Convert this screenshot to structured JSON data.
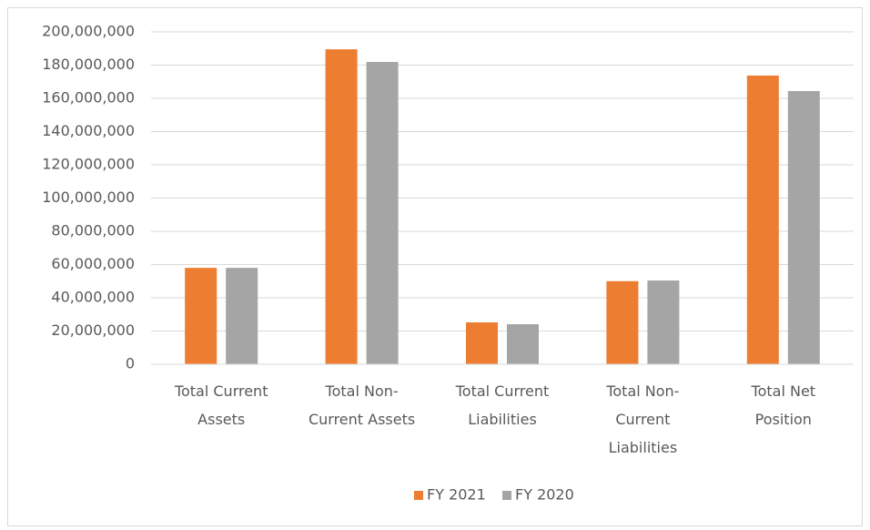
{
  "chart_data": {
    "type": "bar",
    "categories": [
      "Total Current Assets",
      "Total Non-Current Assets",
      "Total Current Liabilities",
      "Total Non-Current Liabilities",
      "Total Net Position"
    ],
    "series": [
      {
        "name": "FY 2021",
        "color": "#ed7d31",
        "values": [
          58000000,
          189500000,
          25200000,
          50000000,
          173700000
        ]
      },
      {
        "name": "FY 2020",
        "color": "#a5a5a5",
        "values": [
          58000000,
          181900000,
          24100000,
          50400000,
          164400000
        ]
      }
    ],
    "ylim": [
      0,
      200000000
    ],
    "yticks": [
      0,
      {
        "value": 20000000,
        "label": "20,000,000"
      },
      {
        "value": 40000000,
        "label": "40,000,000"
      },
      {
        "value": 60000000,
        "label": "60,000,000"
      },
      {
        "value": 80000000,
        "label": "80,000,000"
      },
      {
        "value": 100000000,
        "label": "100,000,000"
      },
      {
        "value": 120000000,
        "label": "120,000,000"
      },
      {
        "value": 140000000,
        "label": "140,000,000"
      },
      {
        "value": 160000000,
        "label": "160,000,000"
      },
      {
        "value": 180000000,
        "label": "180,000,000"
      },
      {
        "value": 200000000,
        "label": "200,000,000"
      }
    ],
    "grid": true,
    "legend": "bottom"
  }
}
